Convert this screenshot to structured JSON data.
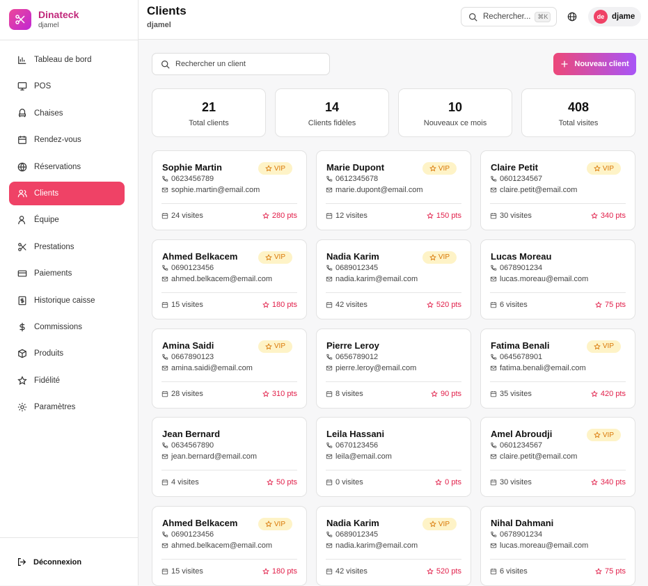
{
  "sidebar": {
    "brand": "Dinateck",
    "user": "djamel",
    "nav": [
      "Tableau de bord",
      "POS",
      "Chaises",
      "Rendez-vous",
      "Réservations",
      "Clients",
      "Équipe",
      "Prestations",
      "Paiements",
      "Historique caisse",
      "Commissions",
      "Produits",
      "Fidélité",
      "Paramètres"
    ],
    "logout": "Déconnexion"
  },
  "header": {
    "title": "Clients",
    "subtitle": "djamel",
    "search": "Rechercher...",
    "shortcut": "⌘K",
    "avatar": "de",
    "user": "djame"
  },
  "toolbar": {
    "search": "Rechercher un client",
    "button": "Nouveau client"
  },
  "stats": [
    {
      "value": 21,
      "label": "Total clients"
    },
    {
      "value": 14,
      "label": "Clients fidèles"
    },
    {
      "value": 10,
      "label": "Nouveaux ce mois"
    },
    {
      "value": 408,
      "label": "Total visites"
    }
  ],
  "cards": [
    {
      "name": "Sophie Martin",
      "badge": "VIP",
      "phone": "0623456789",
      "email": "sophie.martin@email.com",
      "visits": "24 visites",
      "points": "280 pts"
    },
    {
      "name": "Marie Dupont",
      "badge": "VIP",
      "phone": "0612345678",
      "email": "marie.dupont@email.com",
      "visits": "12 visites",
      "points": "150 pts"
    },
    {
      "name": "Claire Petit",
      "badge": "VIP",
      "phone": "0601234567",
      "email": "claire.petit@email.com",
      "visits": "30 visites",
      "points": "340 pts"
    },
    {
      "name": "Ahmed Belkacem",
      "badge": "VIP",
      "phone": "0690123456",
      "email": "ahmed.belkacem@email.com",
      "visits": "15 visites",
      "points": "180 pts"
    },
    {
      "name": "Nadia Karim",
      "badge": "VIP",
      "phone": "0689012345",
      "email": "nadia.karim@email.com",
      "visits": "42 visites",
      "points": "520 pts"
    },
    {
      "name": "Lucas Moreau",
      "phone": "0678901234",
      "email": "lucas.moreau@email.com",
      "visits": "6 visites",
      "points": "75 pts"
    },
    {
      "name": "Amina Saidi",
      "badge": "VIP",
      "phone": "0667890123",
      "email": "amina.saidi@email.com",
      "visits": "28 visites",
      "points": "310 pts"
    },
    {
      "name": "Pierre Leroy",
      "phone": "0656789012",
      "email": "pierre.leroy@email.com",
      "visits": "8 visites",
      "points": "90 pts"
    },
    {
      "name": "Fatima Benali",
      "badge": "VIP",
      "phone": "0645678901",
      "email": "fatima.benali@email.com",
      "visits": "35 visites",
      "points": "420 pts"
    },
    {
      "name": "Jean Bernard",
      "phone": "0634567890",
      "email": "jean.bernard@email.com",
      "visits": "4 visites",
      "points": "50 pts"
    },
    {
      "name": "Leila Hassani",
      "phone": "0670123456",
      "email": "leila@email.com",
      "visits": "0 visites",
      "points": "0 pts"
    },
    {
      "name": "Amel Abroudji",
      "badge": "VIP",
      "phone": "0601234567",
      "email": "claire.petit@email.com",
      "visits": "30 visites",
      "points": "340 pts"
    },
    {
      "name": "Ahmed Belkacem",
      "badge": "VIP",
      "phone": "0690123456",
      "email": "ahmed.belkacem@email.com",
      "visits": "15 visites",
      "points": "180 pts"
    },
    {
      "name": "Nadia Karim",
      "badge": "VIP",
      "phone": "0689012345",
      "email": "nadia.karim@email.com",
      "visits": "42 visites",
      "points": "520 pts"
    },
    {
      "name": "Nihal Dahmani",
      "phone": "0678901234",
      "email": "lucas.moreau@email.com",
      "visits": "6 visites",
      "points": "75 pts"
    }
  ]
}
